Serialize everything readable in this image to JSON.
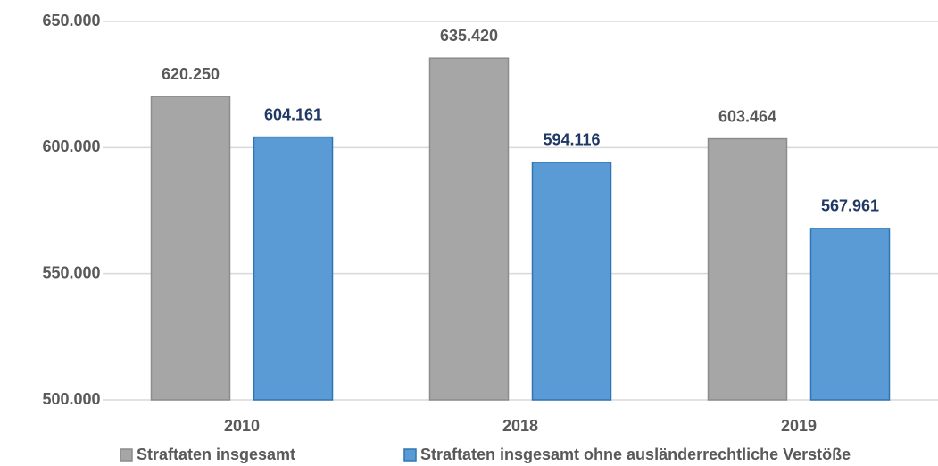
{
  "chart_data": {
    "type": "bar",
    "categories": [
      "2010",
      "2018",
      "2019"
    ],
    "series": [
      {
        "name": "Straftaten insgesamt",
        "color": "#a6a6a6",
        "values": [
          620250,
          635420,
          603464
        ],
        "value_labels": [
          "620.250",
          "635.420",
          "603.464"
        ]
      },
      {
        "name": "Straftaten insgesamt ohne ausländerrechtliche Verstöße",
        "color": "#5b9bd5",
        "values": [
          604161,
          594116,
          567961
        ],
        "value_labels": [
          "604.161",
          "594.116",
          "567.961"
        ]
      }
    ],
    "ylim": [
      500000,
      650000
    ],
    "yticks": [
      {
        "value": 500000,
        "label": "500.000"
      },
      {
        "value": 550000,
        "label": "550.000"
      },
      {
        "value": 600000,
        "label": "600.000"
      },
      {
        "value": 650000,
        "label": "650.000"
      }
    ],
    "grid": true,
    "legend": "bottom"
  }
}
